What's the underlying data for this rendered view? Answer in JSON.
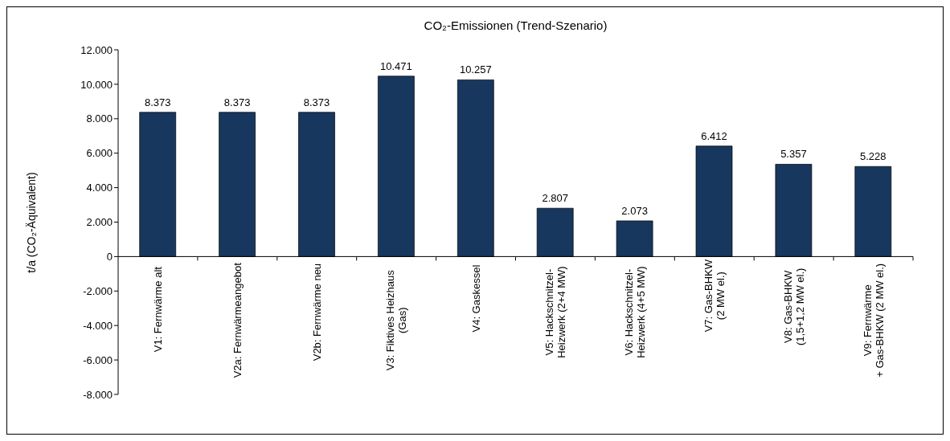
{
  "chart_data": {
    "type": "bar",
    "title": "CO₂-Emissionen (Trend-Szenario)",
    "ylabel": "t/a  (CO₂-Äquivalent)",
    "categories": [
      "V1: Fernwärme alt",
      "V2a: Fernwärmeangebot",
      "V2b: Fernwärme neu",
      "V3: Fiktives Heizhaus\n(Gas)",
      "V4: Gaskessel",
      "V5: Hackschnitzel-\nHeizwerk (2+4 MW)",
      "V6: Hackschnitzel-\nHeizwerk (4+5 MW)",
      "V7: Gas-BHKW\n(2 MW el.)",
      "V8: Gas-BHKW\n(1,5+1,2 MW el.)",
      "V9: Fernwärme\n+ Gas-BHKW (2 MW el.)"
    ],
    "values": [
      8373,
      8373,
      8373,
      10471,
      10257,
      2807,
      2073,
      6412,
      5357,
      5228
    ],
    "value_labels": [
      "8.373",
      "8.373",
      "8.373",
      "10.471",
      "10.257",
      "2.807",
      "2.073",
      "6.412",
      "5.357",
      "5.228"
    ],
    "color": "#17375e",
    "ylim": [
      -8000,
      12000
    ],
    "yticks": [
      {
        "value": -8000,
        "label": "-8.000"
      },
      {
        "value": -6000,
        "label": "-6.000"
      },
      {
        "value": -4000,
        "label": "-4.000"
      },
      {
        "value": -2000,
        "label": "-2.000"
      },
      {
        "value": 0,
        "label": "0"
      },
      {
        "value": 2000,
        "label": "2.000"
      },
      {
        "value": 4000,
        "label": "4.000"
      },
      {
        "value": 6000,
        "label": "6.000"
      },
      {
        "value": 8000,
        "label": "8.000"
      },
      {
        "value": 10000,
        "label": "10.000"
      },
      {
        "value": 12000,
        "label": "12.000"
      }
    ],
    "grid": false
  }
}
